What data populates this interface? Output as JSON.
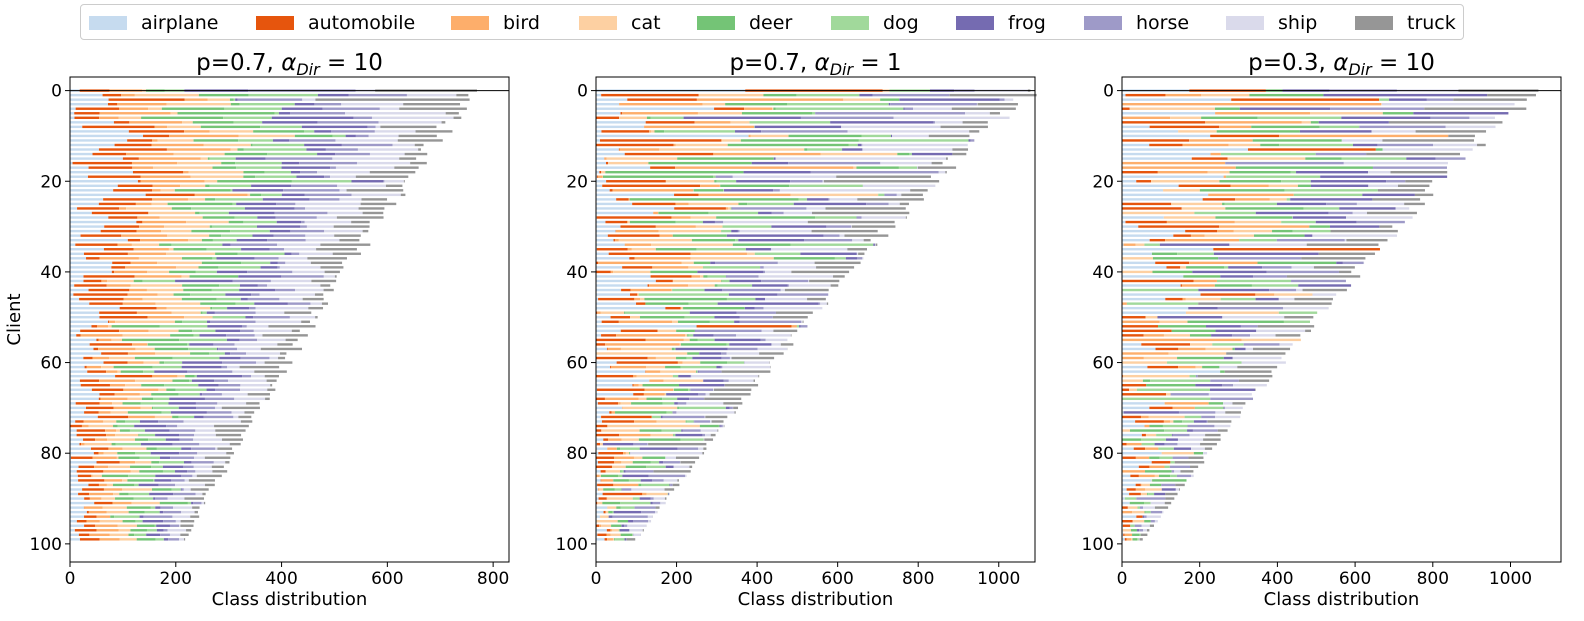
{
  "legend": {
    "classes": [
      {
        "name": "airplane",
        "color": "#c6dbef"
      },
      {
        "name": "automobile",
        "color": "#e6550d"
      },
      {
        "name": "bird",
        "color": "#fdae6b"
      },
      {
        "name": "cat",
        "color": "#fdd0a2"
      },
      {
        "name": "deer",
        "color": "#74c476"
      },
      {
        "name": "dog",
        "color": "#a1d99b"
      },
      {
        "name": "frog",
        "color": "#756bb1"
      },
      {
        "name": "horse",
        "color": "#9e9ac8"
      },
      {
        "name": "ship",
        "color": "#dadaeb"
      },
      {
        "name": "truck",
        "color": "#969696"
      }
    ]
  },
  "chart_data": [
    {
      "type": "bar",
      "orientation": "horizontal-stacked",
      "title_prefix": "p=0.7,",
      "title_math": "α",
      "title_sub": "Dir",
      "title_suffix": " = 10",
      "xlabel": "Class distribution",
      "ylabel": "Client",
      "xlim": [
        0,
        830
      ],
      "ylim": [
        -3,
        104
      ],
      "xticks": [
        0,
        200,
        400,
        600,
        800
      ],
      "yticks": [
        0,
        20,
        40,
        60,
        80,
        100
      ],
      "num_clients": 100,
      "client_totals": {
        "max": 780,
        "min": 215
      },
      "summary": "Each client row is a stacked bar of per-class sample counts; totals decrease from ~780 (client 0) to ~215 (client 99)."
    },
    {
      "type": "bar",
      "orientation": "horizontal-stacked",
      "title_prefix": "p=0.7,",
      "title_math": "α",
      "title_sub": "Dir",
      "title_suffix": " = 1",
      "xlabel": "Class distribution",
      "ylabel": "",
      "xlim": [
        0,
        1090
      ],
      "ylim": [
        -3,
        104
      ],
      "xticks": [
        0,
        200,
        400,
        600,
        800,
        1000
      ],
      "yticks": [
        0,
        20,
        40,
        60,
        80,
        100
      ],
      "num_clients": 100,
      "client_totals": {
        "max": 1090,
        "min": 100
      },
      "summary": "Each client row is a stacked bar of per-class sample counts; totals decrease from ~1090 (client 0) to ~100 (client 99)."
    },
    {
      "type": "bar",
      "orientation": "horizontal-stacked",
      "title_prefix": "p=0.3,",
      "title_math": "α",
      "title_sub": "Dir",
      "title_suffix": " = 10",
      "xlabel": "Class distribution",
      "ylabel": "",
      "xlim": [
        0,
        1130
      ],
      "ylim": [
        -3,
        104
      ],
      "xticks": [
        0,
        200,
        400,
        600,
        800,
        1000
      ],
      "yticks": [
        0,
        20,
        40,
        60,
        80,
        100
      ],
      "num_clients": 100,
      "client_totals": {
        "max": 1080,
        "min": 55
      },
      "summary": "Each client row is a stacked bar of per-class sample counts with fewer classes per client; totals decrease from ~1080 (client 0) to ~55 (client 99)."
    }
  ]
}
